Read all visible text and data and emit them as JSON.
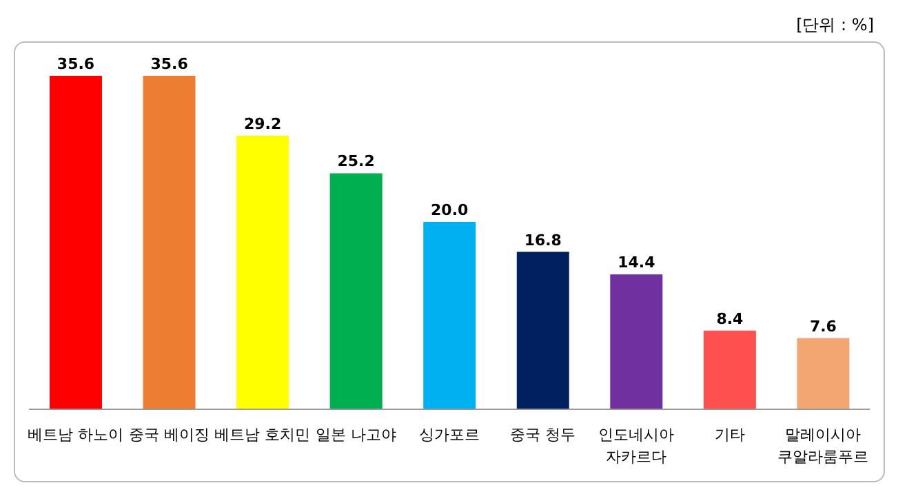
{
  "chart_data": {
    "type": "bar",
    "categories": [
      "베트남 하노이",
      "중국 베이징",
      "베트남 호치민",
      "일본 나고야",
      "싱가포르",
      "중국 청두",
      "인도네시아\n자카르다",
      "기타",
      "말레이시아\n쿠알라룸푸르"
    ],
    "values": [
      35.6,
      35.6,
      29.2,
      25.2,
      20.0,
      16.8,
      14.4,
      8.4,
      7.6
    ],
    "colors": [
      "#ff0000",
      "#ed7d31",
      "#ffff00",
      "#00b050",
      "#00b0f0",
      "#002060",
      "#7030a0",
      "#ff5050",
      "#f4a672"
    ],
    "value_labels": [
      "35.6",
      "35.6",
      "29.2",
      "25.2",
      "20.0",
      "16.8",
      "14.4",
      "8.4",
      "7.6"
    ],
    "annotations": [
      "[단위 : %]"
    ]
  }
}
